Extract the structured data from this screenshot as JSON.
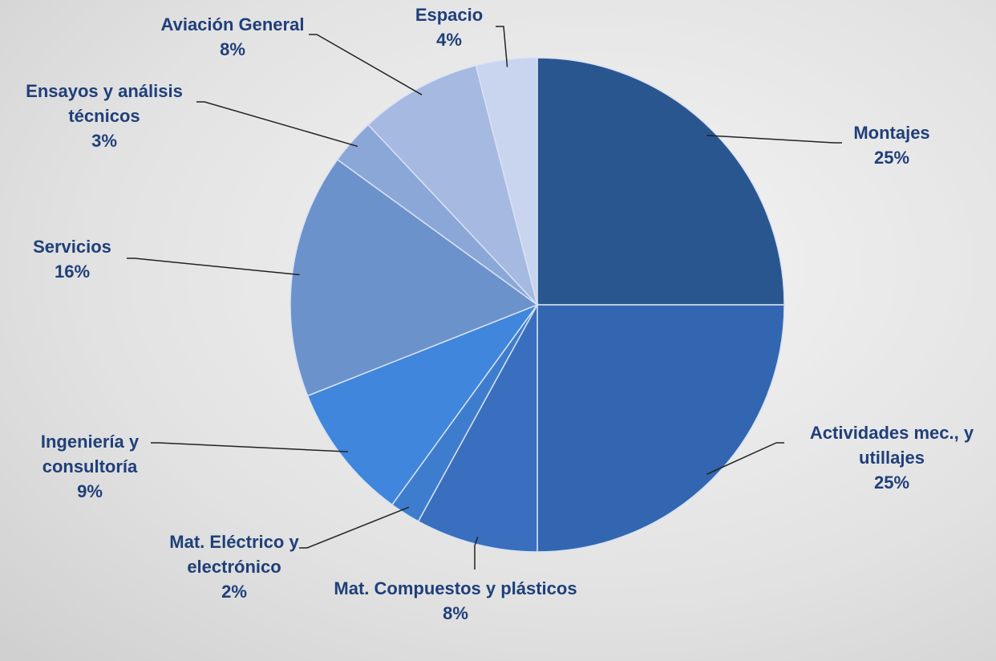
{
  "chart_data": {
    "type": "pie",
    "categories": [
      "Montajes",
      "Actividades mec., y utillajes",
      "Mat. Compuestos  y plásticos",
      "Mat. Eléctrico y electrónico",
      "Ingeniería y consultoría",
      "Servicios",
      "Ensayos y análisis técnicos",
      "Aviación General",
      "Espacio"
    ],
    "values": [
      25,
      25,
      8,
      2,
      9,
      16,
      3,
      8,
      4
    ],
    "value_labels": [
      "25%",
      "25%",
      "8%",
      "2%",
      "9%",
      "16%",
      "3%",
      "8%",
      "4%"
    ],
    "colors": [
      "#2a5690",
      "#3366b0",
      "#396fbe",
      "#3e7dce",
      "#3f86dc",
      "#6c92cc",
      "#8aa7d8",
      "#a6b9e1",
      "#c9d5ef"
    ]
  }
}
